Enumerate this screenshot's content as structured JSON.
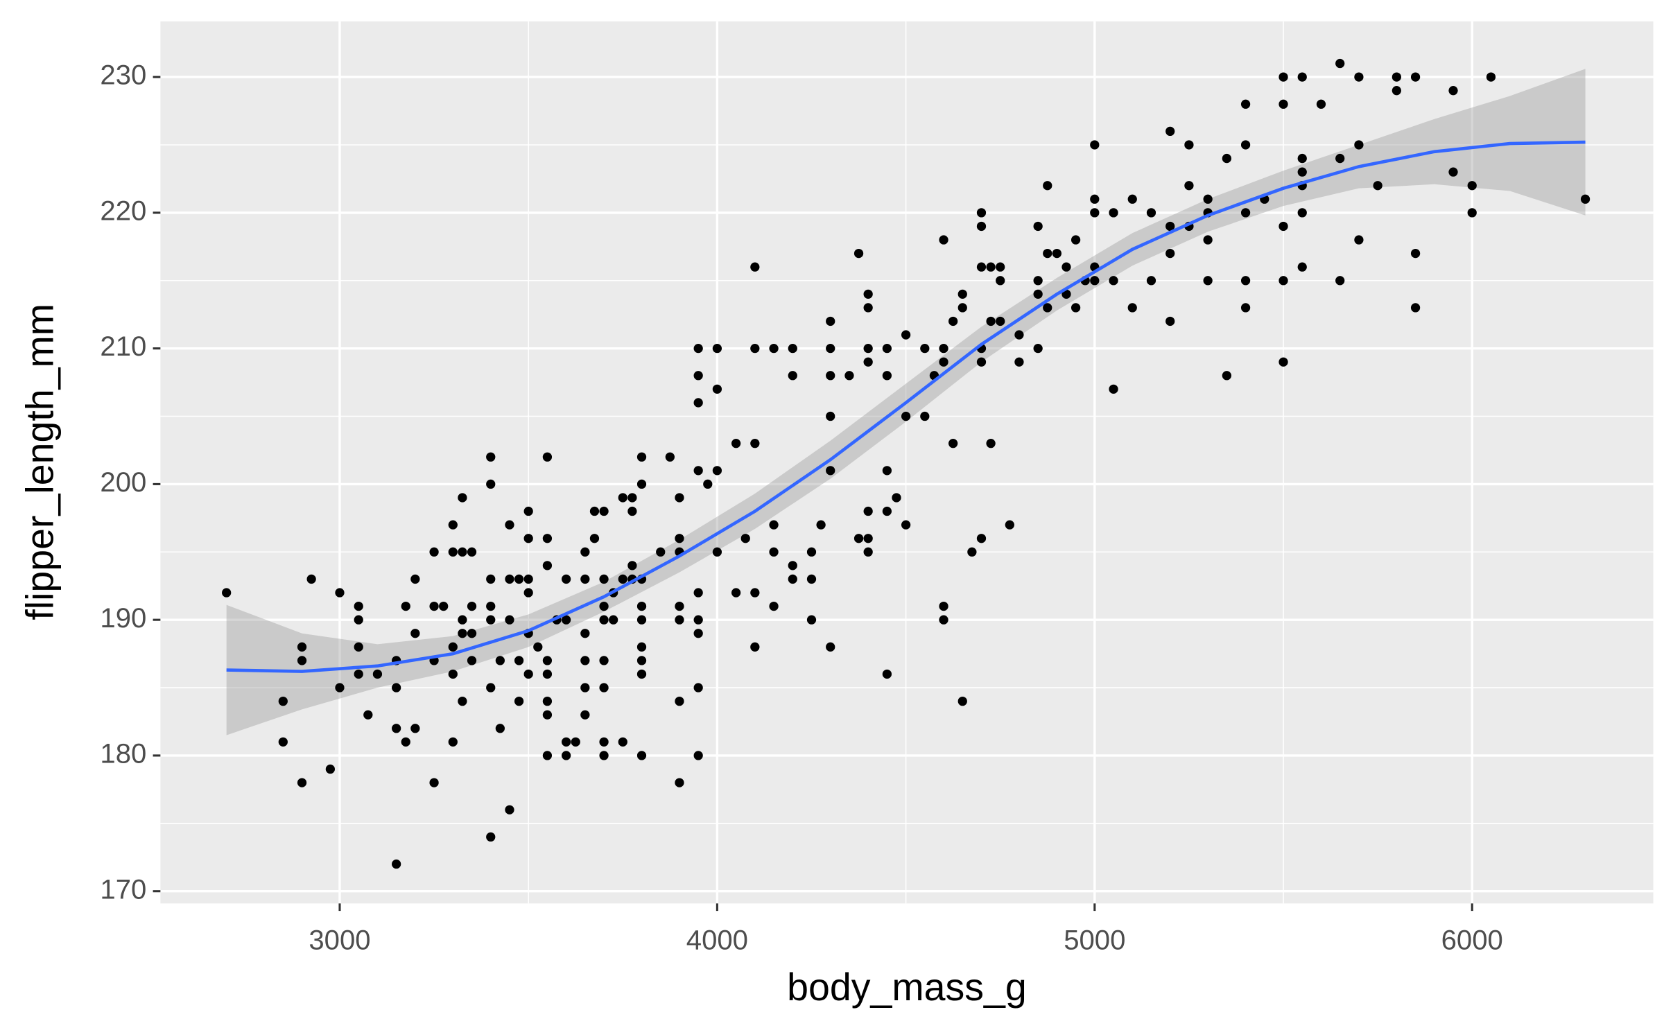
{
  "chart_data": {
    "type": "scatter",
    "xlabel": "body_mass_g",
    "ylabel": "flipper_length_mm",
    "xlim": [
      2525,
      6480
    ],
    "ylim": [
      169.1,
      234.1
    ],
    "xticks": [
      3000,
      4000,
      5000,
      6000
    ],
    "yticks": [
      170,
      180,
      190,
      200,
      210,
      220,
      230
    ],
    "grid": true,
    "points": {
      "color": "#000000",
      "x": [
        2700,
        2850,
        2850,
        2900,
        2900,
        2900,
        2925,
        2975,
        3000,
        3000,
        3050,
        3050,
        3050,
        3050,
        3075,
        3100,
        3150,
        3150,
        3150,
        3150,
        3175,
        3175,
        3200,
        3200,
        3200,
        3250,
        3250,
        3250,
        3250,
        3275,
        3300,
        3300,
        3300,
        3300,
        3300,
        3325,
        3325,
        3325,
        3325,
        3325,
        3350,
        3350,
        3350,
        3350,
        3400,
        3400,
        3400,
        3400,
        3400,
        3400,
        3400,
        3425,
        3425,
        3450,
        3450,
        3450,
        3450,
        3475,
        3475,
        3475,
        3500,
        3500,
        3500,
        3500,
        3500,
        3500,
        3525,
        3550,
        3550,
        3550,
        3550,
        3550,
        3550,
        3550,
        3550,
        3575,
        3600,
        3600,
        3600,
        3600,
        3625,
        3650,
        3650,
        3650,
        3650,
        3650,
        3650,
        3675,
        3675,
        3700,
        3700,
        3700,
        3700,
        3700,
        3700,
        3700,
        3700,
        3725,
        3725,
        3750,
        3750,
        3750,
        3775,
        3775,
        3775,
        3775,
        3800,
        3800,
        3800,
        3800,
        3800,
        3800,
        3800,
        3800,
        3800,
        3850,
        3875,
        3900,
        3900,
        3900,
        3900,
        3900,
        3900,
        3900,
        3950,
        3950,
        3950,
        3950,
        3950,
        3950,
        3950,
        3950,
        3950,
        3975,
        4000,
        4000,
        4000,
        4000,
        4050,
        4050,
        4075,
        4100,
        4100,
        4100,
        4100,
        4100,
        4150,
        4150,
        4150,
        4150,
        4200,
        4200,
        4200,
        4200,
        4250,
        4250,
        4250,
        4275,
        4300,
        4300,
        4300,
        4300,
        4300,
        4300,
        4350,
        4375,
        4375,
        4400,
        4400,
        4400,
        4400,
        4400,
        4400,
        4400,
        4450,
        4450,
        4450,
        4450,
        4450,
        4475,
        4500,
        4500,
        4500,
        4550,
        4550,
        4575,
        4600,
        4600,
        4600,
        4600,
        4600,
        4625,
        4625,
        4650,
        4650,
        4650,
        4675,
        4700,
        4700,
        4700,
        4700,
        4700,
        4700,
        4725,
        4725,
        4725,
        4750,
        4750,
        4750,
        4775,
        4800,
        4800,
        4850,
        4850,
        4850,
        4850,
        4875,
        4875,
        4875,
        4900,
        4925,
        4925,
        4950,
        4950,
        4975,
        5000,
        5000,
        5000,
        5000,
        5000,
        5050,
        5050,
        5050,
        5100,
        5100,
        5150,
        5150,
        5200,
        5200,
        5200,
        5200,
        5250,
        5250,
        5250,
        5300,
        5300,
        5300,
        5300,
        5350,
        5350,
        5400,
        5400,
        5400,
        5400,
        5400,
        5450,
        5500,
        5500,
        5500,
        5500,
        5500,
        5550,
        5550,
        5550,
        5550,
        5550,
        5550,
        5600,
        5650,
        5650,
        5650,
        5700,
        5700,
        5700,
        5750,
        5800,
        5800,
        5850,
        5850,
        5850,
        5950,
        5950,
        6000,
        6000,
        6050,
        6300
      ],
      "y": [
        192,
        184,
        181,
        188,
        187,
        178,
        193,
        179,
        192,
        185,
        191,
        190,
        188,
        186,
        183,
        186,
        187,
        185,
        182,
        172,
        191,
        181,
        193,
        189,
        182,
        195,
        191,
        187,
        178,
        191,
        197,
        195,
        188,
        186,
        181,
        199,
        195,
        190,
        189,
        184,
        195,
        191,
        189,
        187,
        202,
        200,
        193,
        191,
        190,
        185,
        174,
        187,
        182,
        197,
        193,
        190,
        176,
        193,
        187,
        184,
        198,
        196,
        193,
        192,
        189,
        186,
        188,
        202,
        196,
        194,
        187,
        186,
        184,
        183,
        180,
        190,
        193,
        190,
        181,
        180,
        181,
        195,
        193,
        189,
        187,
        185,
        183,
        198,
        196,
        198,
        193,
        191,
        190,
        187,
        185,
        181,
        180,
        192,
        190,
        199,
        193,
        181,
        199,
        198,
        194,
        193,
        202,
        200,
        193,
        191,
        190,
        188,
        187,
        186,
        180,
        195,
        202,
        199,
        196,
        195,
        191,
        190,
        184,
        178,
        210,
        208,
        206,
        201,
        192,
        190,
        189,
        185,
        180,
        200,
        210,
        207,
        201,
        195,
        203,
        192,
        196,
        216,
        210,
        203,
        192,
        188,
        210,
        197,
        195,
        191,
        210,
        208,
        194,
        193,
        195,
        193,
        190,
        197,
        212,
        210,
        208,
        205,
        201,
        188,
        208,
        217,
        196,
        214,
        213,
        210,
        209,
        198,
        196,
        195,
        210,
        208,
        201,
        198,
        186,
        199,
        211,
        205,
        197,
        210,
        205,
        208,
        218,
        210,
        209,
        191,
        190,
        212,
        203,
        214,
        213,
        184,
        195,
        210,
        209,
        219,
        220,
        216,
        196,
        216,
        212,
        203,
        216,
        215,
        212,
        197,
        211,
        209,
        219,
        215,
        214,
        210,
        222,
        217,
        213,
        217,
        216,
        214,
        218,
        213,
        215,
        225,
        221,
        220,
        216,
        215,
        220,
        215,
        207,
        221,
        213,
        220,
        215,
        226,
        219,
        217,
        212,
        225,
        222,
        219,
        221,
        220,
        218,
        215,
        224,
        208,
        228,
        225,
        220,
        215,
        213,
        221,
        230,
        228,
        219,
        215,
        209,
        230,
        224,
        223,
        222,
        220,
        216,
        228,
        231,
        224,
        215,
        230,
        225,
        218,
        222,
        230,
        229,
        230,
        217,
        213,
        229,
        223,
        222,
        220,
        230,
        221
      ]
    },
    "smooth": {
      "color": "#3366ff",
      "band_color": "#999999",
      "x": [
        2700,
        2900,
        3100,
        3300,
        3500,
        3700,
        3900,
        4100,
        4300,
        4500,
        4700,
        4900,
        5100,
        5300,
        5500,
        5700,
        5900,
        6100,
        6300
      ],
      "y": [
        186.3,
        186.2,
        186.6,
        187.5,
        189.2,
        191.7,
        194.7,
        198.0,
        201.8,
        206.0,
        210.3,
        214.0,
        217.3,
        219.8,
        221.8,
        223.4,
        224.5,
        225.1,
        225.2
      ],
      "lower": [
        181.5,
        183.4,
        185.0,
        186.2,
        188.0,
        190.6,
        193.5,
        196.7,
        200.4,
        204.6,
        209.0,
        212.8,
        216.1,
        218.6,
        220.5,
        221.8,
        222.1,
        221.6,
        219.8
      ],
      "upper": [
        191.1,
        189.0,
        188.2,
        188.8,
        190.4,
        192.8,
        195.9,
        199.3,
        203.2,
        207.4,
        211.6,
        215.2,
        218.5,
        221.0,
        223.1,
        225.0,
        226.9,
        228.6,
        230.6
      ]
    }
  }
}
